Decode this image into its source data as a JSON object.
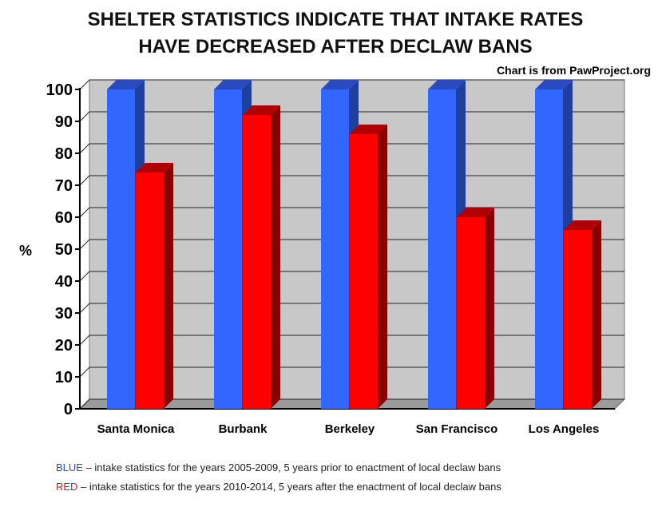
{
  "chart_data": {
    "type": "bar",
    "title_lines": [
      "SHELTER STATISTICS INDICATE THAT INTAKE RATES",
      "HAVE DECREASED AFTER DECLAW BANS"
    ],
    "source_note": "Chart is from PawProject.org",
    "categories": [
      "Santa Monica",
      "Burbank",
      "Berkeley",
      "San Francisco",
      "Los Angeles"
    ],
    "series": [
      {
        "name": "BLUE",
        "color": "#3366ff",
        "values": [
          100,
          100,
          100,
          100,
          100
        ]
      },
      {
        "name": "RED",
        "color": "#ff0000",
        "values": [
          74,
          92,
          86,
          60,
          56
        ]
      }
    ],
    "ylabel": "%",
    "ylim": [
      0,
      100
    ],
    "yticks": [
      "0",
      "10",
      "20",
      "30",
      "40",
      "50",
      "60",
      "70",
      "80",
      "90",
      "100"
    ],
    "grid": true
  },
  "legend": {
    "blue_key": "BLUE",
    "blue_text": " – intake statistics for the years 2005-2009, 5 years prior to enactment of local declaw bans",
    "red_key": "RED",
    "red_text": " – intake statistics for the years 2010-2014, 5 years after the enactment of local declaw bans"
  }
}
